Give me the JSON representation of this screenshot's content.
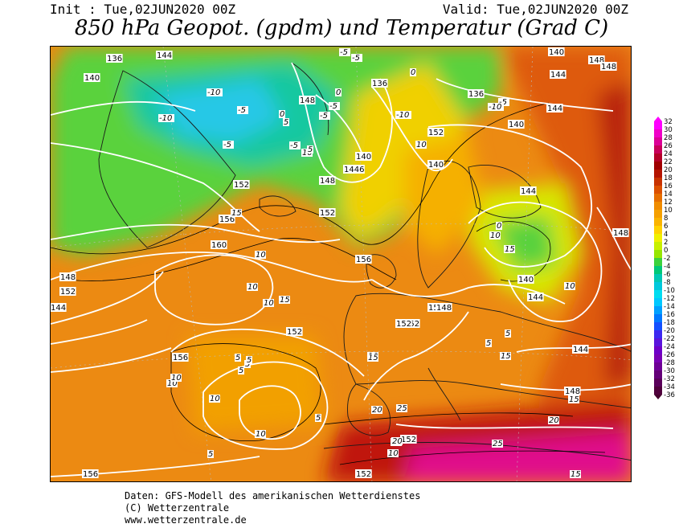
{
  "header": {
    "init": "Init : Tue,02JUN2020 00Z",
    "valid": "Valid: Tue,02JUN2020 00Z",
    "title": "850 hPa Geopot. (gpdm) und Temperatur (Grad C)"
  },
  "legend": {
    "values": [
      "32",
      "30",
      "28",
      "26",
      "24",
      "22",
      "20",
      "18",
      "16",
      "14",
      "12",
      "10",
      "8",
      "6",
      "4",
      "2",
      "0",
      "-2",
      "-4",
      "-6",
      "-8",
      "-10",
      "-12",
      "-14",
      "-16",
      "-18",
      "-20",
      "-22",
      "-24",
      "-26",
      "-28",
      "-30",
      "-32",
      "-34",
      "-36"
    ],
    "colors": [
      "#ff00ff",
      "#f000c8",
      "#dc0096",
      "#c8005a",
      "#b40028",
      "#a00000",
      "#b41400",
      "#c83200",
      "#dc5000",
      "#e66e00",
      "#f08c00",
      "#f5a000",
      "#fab400",
      "#ffd200",
      "#f0f000",
      "#c8f000",
      "#96e600",
      "#3cd23c",
      "#00c878",
      "#00c8b4",
      "#00c8dc",
      "#00dcf0",
      "#00c8ff",
      "#00a0ff",
      "#0078ff",
      "#1450ff",
      "#3c28f0",
      "#5a14dc",
      "#6e00c8",
      "#7800b4",
      "#6e0096",
      "#640078",
      "#5a005a",
      "#50003c",
      "#46002d"
    ]
  },
  "map": {
    "geopotential_labels": [
      "136",
      "144",
      "140",
      "136",
      "140",
      "144",
      "148",
      "148",
      "144",
      "140",
      "136",
      "148",
      "140",
      "152",
      "140",
      "1446",
      "148",
      "152",
      "152",
      "144",
      "156",
      "160",
      "156",
      "152",
      "148",
      "152",
      "144",
      "156",
      "152",
      "148",
      "152",
      "144",
      "140",
      "152",
      "144",
      "148",
      "152",
      "152",
      "156",
      "148"
    ],
    "temperature_labels": [
      "-5",
      "-5",
      "0",
      "-10",
      "-10",
      "-10",
      "-5",
      "-5",
      "-5",
      "-5",
      "0",
      "5",
      "10",
      "5",
      "-5",
      "0",
      "-5",
      "-10",
      "10",
      "15",
      "10",
      "10",
      "15",
      "10",
      "10",
      "5",
      "5",
      "5",
      "5",
      "10",
      "10",
      "10",
      "5",
      "10",
      "15",
      "15",
      "20",
      "20",
      "25",
      "20",
      "25",
      "15",
      "10",
      "5",
      "0",
      "10",
      "15",
      "20",
      "10",
      "15",
      "5",
      "5"
    ]
  },
  "footer": {
    "line1": "Daten: GFS-Modell des amerikanischen Wetterdienstes",
    "line2": "(C) Wetterzentrale",
    "line3": "www.wetterzentrale.de"
  }
}
